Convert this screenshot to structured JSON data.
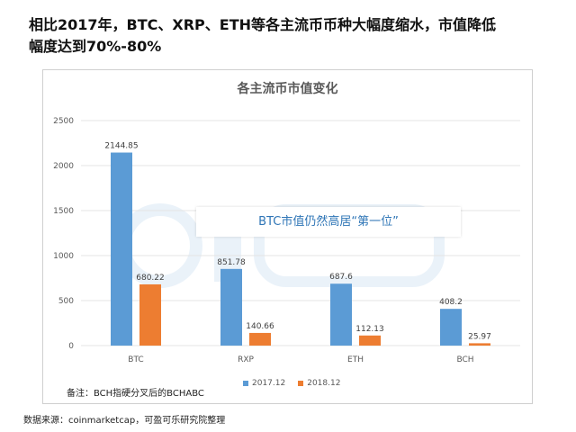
{
  "slide": {
    "title": "相比2017年，BTC、XRP、ETH等各主流币币种大幅度缩水，市值降低\n幅度达到70%-80%",
    "callout": "BTC市值仍然高居“第一位”",
    "note": "备注：BCH指硬分叉后的BCHABC",
    "source": "数据来源：coinmarketcap，可盈可乐研究院整理"
  },
  "chart_data": {
    "type": "bar",
    "title": "各主流币市值变化",
    "categories": [
      "BTC",
      "RXP",
      "ETH",
      "BCH"
    ],
    "series": [
      {
        "name": "2017.12",
        "color": "#5b9bd5",
        "values": [
          2144.85,
          851.78,
          687.6,
          408.2
        ]
      },
      {
        "name": "2018.12",
        "color": "#ed7d31",
        "values": [
          680.22,
          140.66,
          112.13,
          25.97
        ]
      }
    ],
    "ylim": [
      0,
      2500
    ],
    "yticks": [
      0,
      500,
      1000,
      1500,
      2000,
      2500
    ],
    "grid": true,
    "legend": "bottom"
  }
}
